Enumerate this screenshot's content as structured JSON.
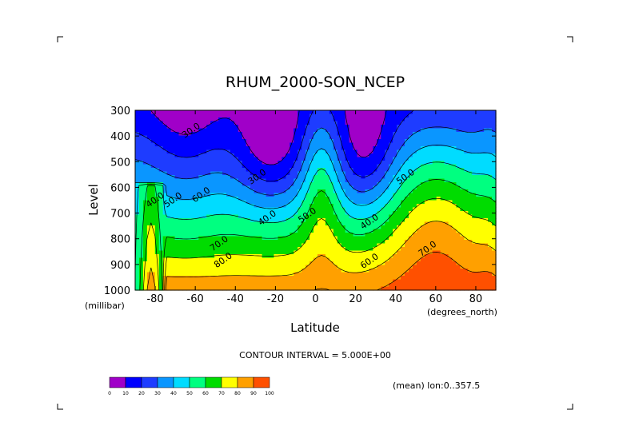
{
  "chart_data": {
    "type": "contour",
    "title": "RHUM_2000-SON_NCEP",
    "xlabel": "Latitude",
    "ylabel": "Level",
    "x_unit_label": "(degrees_north)",
    "y_unit_label": "(millibar)",
    "x_ticks": [
      -80,
      -60,
      -40,
      -20,
      0,
      20,
      40,
      60,
      80
    ],
    "x_tick_labels": [
      "-80",
      "-60",
      "-40",
      "-20",
      "0",
      "20",
      "40",
      "60",
      "80"
    ],
    "y_ticks": [
      300,
      400,
      500,
      600,
      700,
      800,
      900,
      1000
    ],
    "y_tick_labels": [
      "300",
      "400",
      "500",
      "600",
      "700",
      "800",
      "900",
      "1000"
    ],
    "xlim": [
      -90,
      90
    ],
    "ylim": [
      1000,
      300
    ],
    "contour_levels": [
      0,
      10,
      20,
      30,
      40,
      50,
      60,
      70,
      80,
      90,
      100
    ],
    "contour_labels": [
      {
        "text": "30.0",
        "lat": -62,
        "lev": 380
      },
      {
        "text": "30.0",
        "lat": -29,
        "lev": 560
      },
      {
        "text": "40.0",
        "lat": -24,
        "lev": 720
      },
      {
        "text": "40.0",
        "lat": -80,
        "lev": 650
      },
      {
        "text": "50.0",
        "lat": -71,
        "lev": 650
      },
      {
        "text": "60.0",
        "lat": -57,
        "lev": 630
      },
      {
        "text": "50.0",
        "lat": -4,
        "lev": 710
      },
      {
        "text": "40.0",
        "lat": 27,
        "lev": 735
      },
      {
        "text": "50.0",
        "lat": 45,
        "lev": 560
      },
      {
        "text": "70.0",
        "lat": -48,
        "lev": 820
      },
      {
        "text": "80.0",
        "lat": -46,
        "lev": 885
      },
      {
        "text": "60.0",
        "lat": 27,
        "lev": 888
      },
      {
        "text": "70.0",
        "lat": 56,
        "lev": 840
      }
    ],
    "colorbar": {
      "values": [
        "0",
        "10",
        "20",
        "30",
        "40",
        "50",
        "60",
        "70",
        "80",
        "90",
        "100"
      ],
      "colors": [
        "#a000c8",
        "#0000ff",
        "#1e3cff",
        "#0a96ff",
        "#00dcff",
        "#00ff80",
        "#00dc00",
        "#ffff00",
        "#ffa000",
        "#ff5000",
        "#ff0000"
      ]
    },
    "footer": {
      "contour_interval": "CONTOUR INTERVAL = 5.000E+00",
      "averaging_note": "(mean) lon:0..357.5"
    }
  }
}
